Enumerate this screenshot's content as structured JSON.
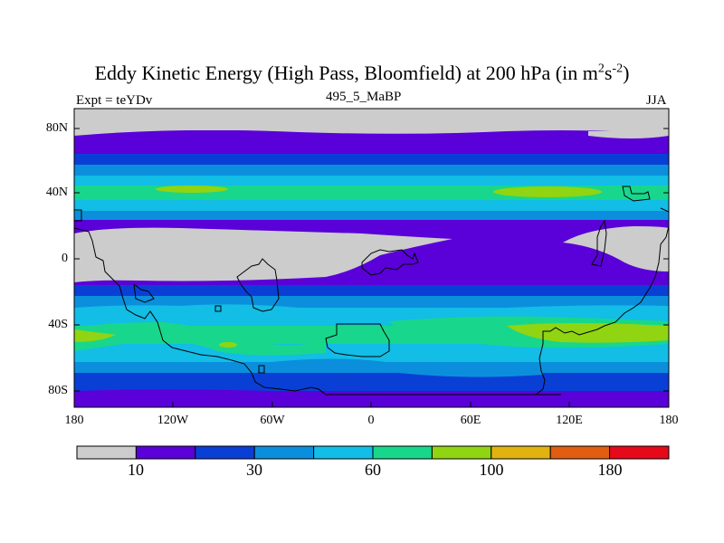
{
  "title": {
    "main": "Eddy Kinetic Energy (High Pass, Bloomfield) at 200 hPa (in m",
    "sup1": "2",
    "mid": "s",
    "sup2": "-2",
    "close": ")"
  },
  "left_label": "Expt = teYDv",
  "center_label": "495_5_MaBP",
  "right_label": "JJA",
  "lat_ticks": [
    "80N",
    "40N",
    "0",
    "40S",
    "80S"
  ],
  "lon_ticks": [
    "180",
    "120W",
    "60W",
    "0",
    "60E",
    "120E",
    "180"
  ],
  "colorbar": {
    "colors": [
      "#cccccc",
      "#5a00d8",
      "#0a3fd6",
      "#0b8fdd",
      "#12bde6",
      "#18d78c",
      "#90d412",
      "#e1b310",
      "#e05d12",
      "#e6091a"
    ],
    "labels": [
      "10",
      "30",
      "60",
      "100",
      "180"
    ]
  }
}
